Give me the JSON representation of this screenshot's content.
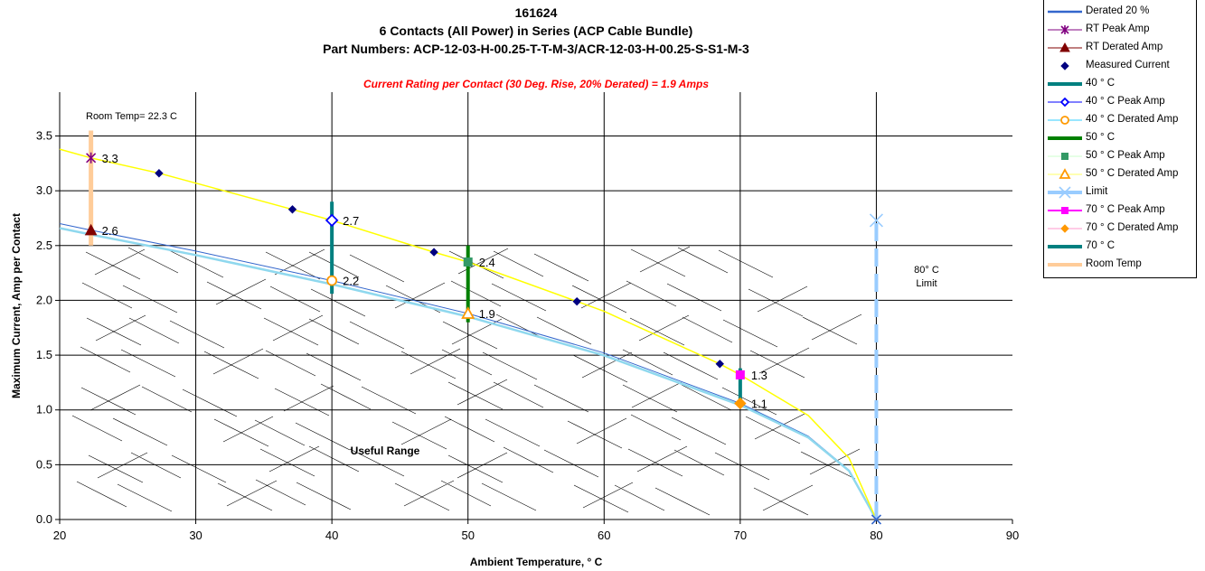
{
  "chart_data": {
    "type": "line",
    "title": [
      "161624",
      "6 Contacts (All Power) in Series (ACP Cable Bundle)",
      "Part Numbers: ACP-12-03-H-00.25-T-T-M-3/ACR-12-03-H-00.25-S-S1-M-3"
    ],
    "subtitle": "Current Rating per Contact (30 Deg. Rise, 20% Derated) = 1.9 Amps",
    "xlabel": "Ambient Temperature,  ° C",
    "ylabel": "Maximum Current, Amp per Contact",
    "xlim": [
      20,
      90
    ],
    "ylim": [
      0,
      3.9
    ],
    "xticks": [
      "20",
      "30",
      "40",
      "50",
      "60",
      "70",
      "80",
      "90"
    ],
    "yticks": [
      "0.0",
      "0.5",
      "1.0",
      "1.5",
      "2.0",
      "2.5",
      "3.0",
      "3.5"
    ],
    "grid": true,
    "legend_position": "right",
    "series": [
      {
        "name": "Derated 20 %",
        "color": "#3366cc",
        "kind": "curve-derated",
        "x": [
          20,
          22.3,
          30,
          40,
          50,
          60,
          70,
          75,
          78,
          80
        ],
        "y": [
          2.7,
          2.64,
          2.45,
          2.18,
          1.88,
          1.52,
          1.06,
          0.76,
          0.45,
          0.0
        ]
      },
      {
        "name": "RT Peak Amp",
        "color": "#800080",
        "marker": "star",
        "x": [
          22.3
        ],
        "y": [
          3.3
        ]
      },
      {
        "name": "RT Derated Amp",
        "color": "#800000",
        "marker": "triangle",
        "x": [
          22.3
        ],
        "y": [
          2.64
        ]
      },
      {
        "name": "Measured Current",
        "color": "#000080",
        "marker": "diamond",
        "x": [
          27.3,
          37.1,
          47.5,
          58.0,
          68.5,
          80
        ],
        "y": [
          3.16,
          2.83,
          2.44,
          1.99,
          1.42,
          0.0
        ]
      },
      {
        "name": "40 ° C",
        "color": "#008080",
        "kind": "vbar",
        "x": [
          40,
          40
        ],
        "y": [
          2.06,
          2.9
        ]
      },
      {
        "name": "40  ° C Peak Amp",
        "color": "#0000ff",
        "marker": "diamond-open",
        "x": [
          40
        ],
        "y": [
          2.73
        ]
      },
      {
        "name": "40  ° C Derated Amp",
        "color": "#ff9900",
        "marker": "circle-open",
        "x": [
          40
        ],
        "y": [
          2.18
        ]
      },
      {
        "name": "50  ° C",
        "color": "#008000",
        "kind": "vbar",
        "x": [
          50,
          50
        ],
        "y": [
          1.8,
          2.5
        ]
      },
      {
        "name": "50  ° C Peak Amp",
        "color": "#339966",
        "marker": "square",
        "x": [
          50
        ],
        "y": [
          2.35
        ]
      },
      {
        "name": "50  ° C Derated Amp",
        "color": "#ff9900",
        "marker": "triangle-open",
        "x": [
          50
        ],
        "y": [
          1.88
        ]
      },
      {
        "name": "Limit",
        "color": "#99ccff",
        "kind": "limit",
        "x": [
          80,
          80
        ],
        "y": [
          0,
          2.73
        ]
      },
      {
        "name": "70  ° C Peak Amp",
        "color": "#ff00ff",
        "marker": "square",
        "x": [
          70
        ],
        "y": [
          1.32
        ]
      },
      {
        "name": "70  ° C Derated Amp",
        "color": "#ff9900",
        "marker": "diamond",
        "x": [
          70
        ],
        "y": [
          1.06
        ]
      },
      {
        "name": "70  ° C",
        "color": "#008080",
        "kind": "vbar",
        "x": [
          70,
          70
        ],
        "y": [
          1.06,
          1.38
        ]
      },
      {
        "name": "Room Temp",
        "color": "#ffcc99",
        "kind": "vbar",
        "x": [
          22.3,
          22.3
        ],
        "y": [
          2.5,
          3.55
        ]
      }
    ],
    "peak_curve": {
      "color": "#ffff00",
      "x": [
        20,
        22.3,
        27.3,
        30,
        37.1,
        40,
        47.5,
        50,
        58,
        60,
        68.5,
        70,
        75,
        78,
        80
      ],
      "y": [
        3.38,
        3.3,
        3.16,
        3.07,
        2.83,
        2.73,
        2.44,
        2.35,
        1.99,
        1.9,
        1.42,
        1.32,
        0.95,
        0.56,
        0.0
      ]
    },
    "data_labels": [
      {
        "x": 22.3,
        "y": 3.3,
        "text": "3.3"
      },
      {
        "x": 22.3,
        "y": 2.64,
        "text": "2.6"
      },
      {
        "x": 40,
        "y": 2.73,
        "text": "2.7"
      },
      {
        "x": 40,
        "y": 2.18,
        "text": "2.2"
      },
      {
        "x": 50,
        "y": 2.35,
        "text": "2.4"
      },
      {
        "x": 50,
        "y": 1.88,
        "text": "1.9"
      },
      {
        "x": 70,
        "y": 1.32,
        "text": "1.3"
      },
      {
        "x": 70,
        "y": 1.06,
        "text": "1.1"
      }
    ],
    "annotations": [
      {
        "text": "Room Temp= 22.3 C",
        "x": 22.3,
        "y": 3.75
      },
      {
        "text": "80° C",
        "x": 82.0,
        "y": 2.36
      },
      {
        "text": "Limit",
        "x": 82.0,
        "y": 2.22
      },
      {
        "text": "Useful Range",
        "x": 48.3,
        "y": 0.63
      }
    ]
  }
}
